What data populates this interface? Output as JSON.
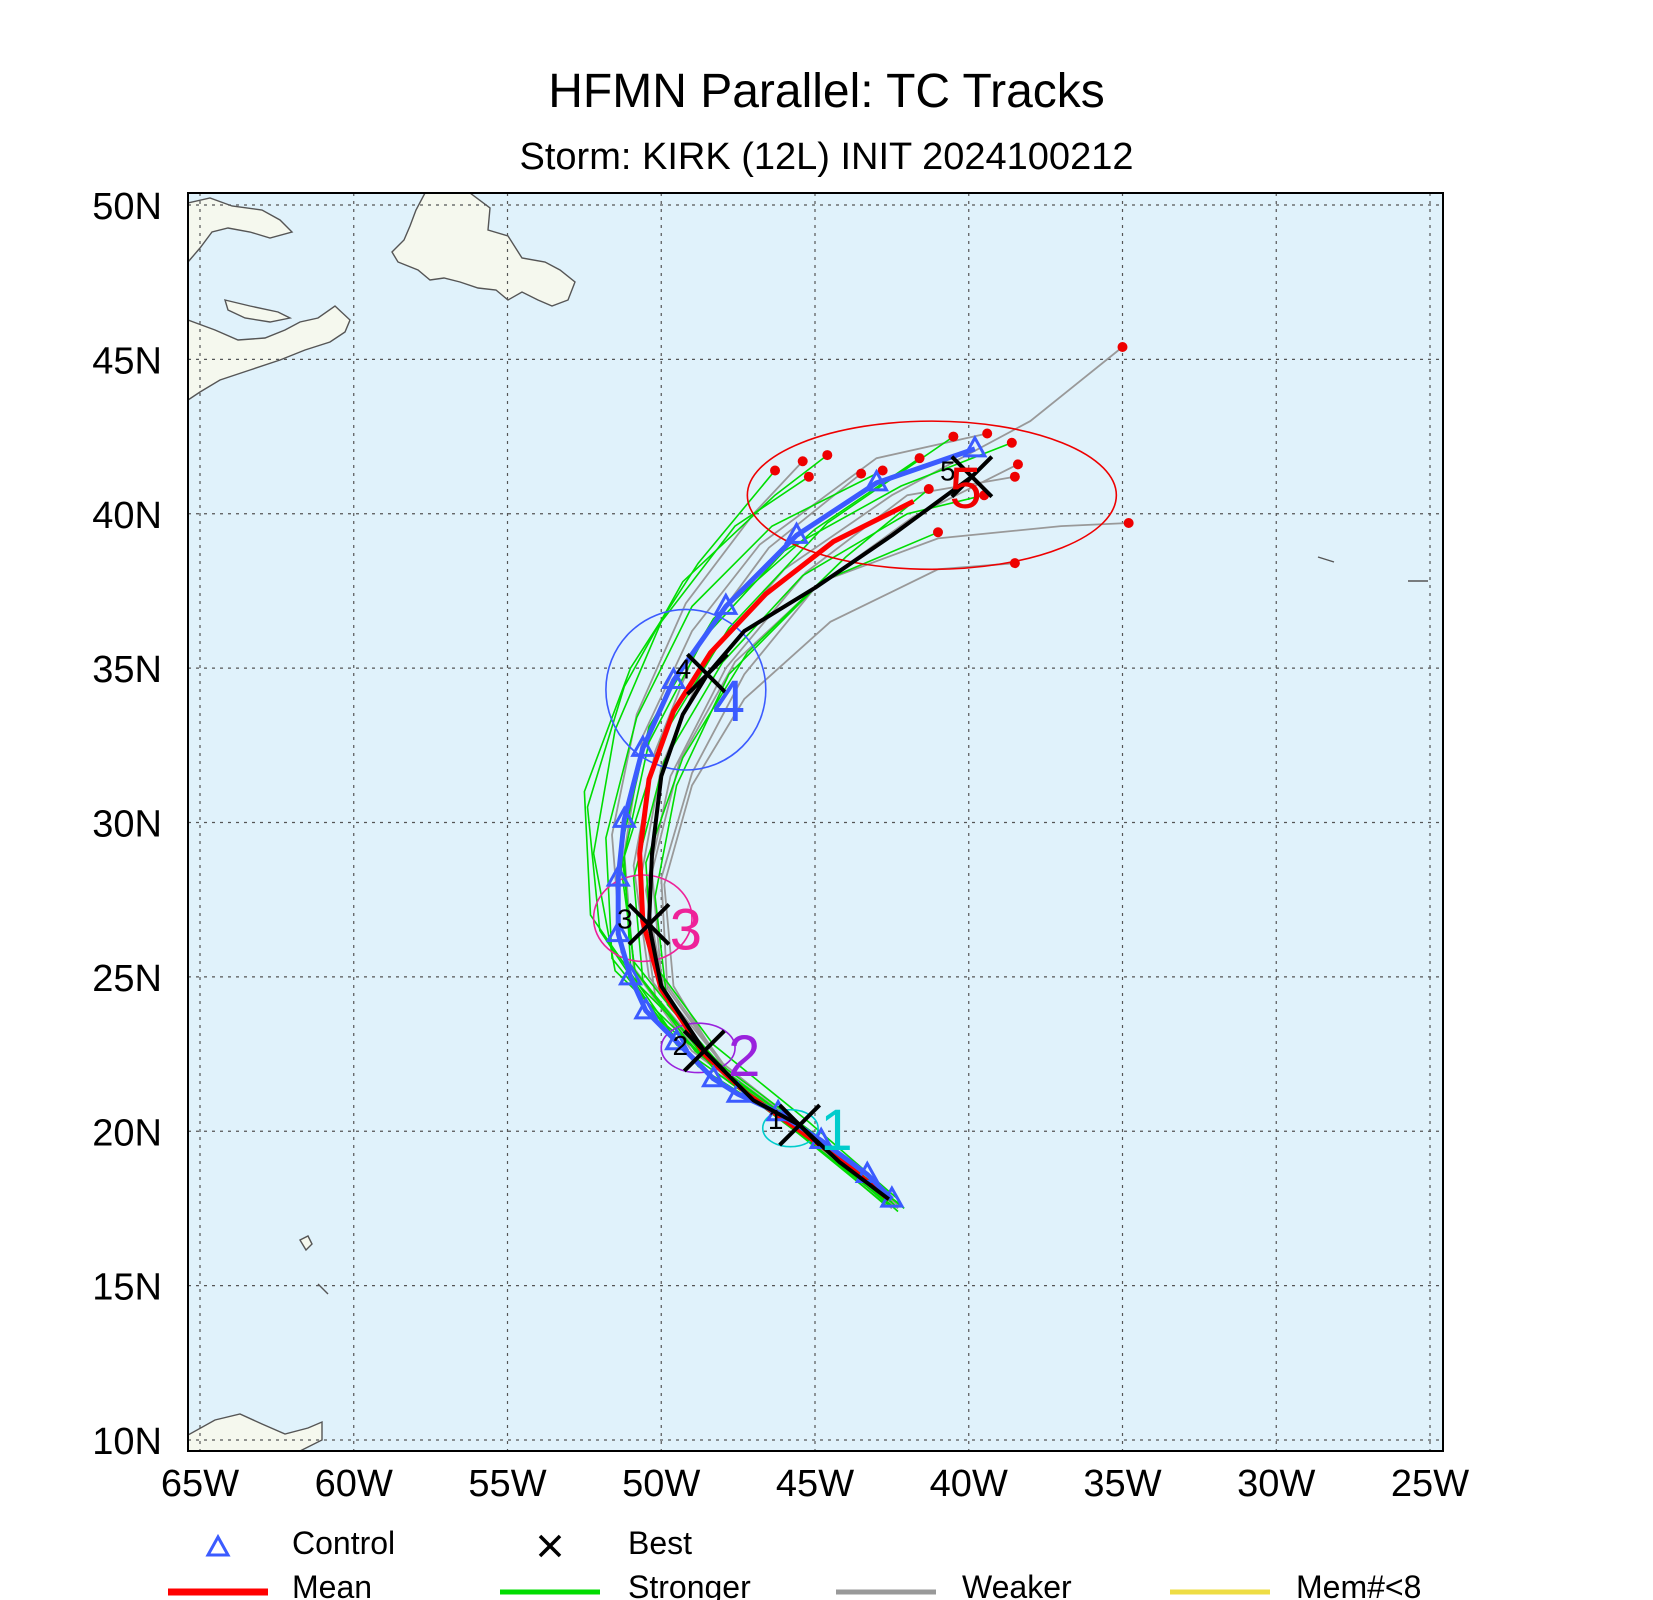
{
  "title": "HFMN Parallel: TC Tracks",
  "subtitle": "Storm: KIRK (12L) INIT 2024100212",
  "chart_data": {
    "type": "line",
    "xlim": [
      -65,
      -25
    ],
    "ylim": [
      10,
      50
    ],
    "x_ticks": [
      {
        "value": -65,
        "label": "65W"
      },
      {
        "value": -60,
        "label": "60W"
      },
      {
        "value": -55,
        "label": "55W"
      },
      {
        "value": -50,
        "label": "50W"
      },
      {
        "value": -45,
        "label": "45W"
      },
      {
        "value": -40,
        "label": "40W"
      },
      {
        "value": -35,
        "label": "35W"
      },
      {
        "value": -30,
        "label": "30W"
      },
      {
        "value": -25,
        "label": "25W"
      }
    ],
    "y_ticks": [
      {
        "value": 10,
        "label": "10N"
      },
      {
        "value": 15,
        "label": "15N"
      },
      {
        "value": 20,
        "label": "20N"
      },
      {
        "value": 25,
        "label": "25N"
      },
      {
        "value": 30,
        "label": "30N"
      },
      {
        "value": 35,
        "label": "35N"
      },
      {
        "value": 40,
        "label": "40N"
      },
      {
        "value": 45,
        "label": "45N"
      },
      {
        "value": 50,
        "label": "50N"
      }
    ],
    "grid": true,
    "legend": [
      {
        "label": "Control",
        "symbol": "triangle",
        "color": "#3b5bff"
      },
      {
        "label": "Best",
        "symbol": "x",
        "color": "#000000"
      },
      {
        "label": "Mean",
        "symbol": "line",
        "color": "#ff0000"
      },
      {
        "label": "Stronger",
        "symbol": "line",
        "color": "#00dd00"
      },
      {
        "label": "Weaker",
        "symbol": "line",
        "color": "#999999"
      },
      {
        "label": "Mem#<8",
        "symbol": "line",
        "color": "#eedd44"
      }
    ],
    "best_track": {
      "color": "#000000",
      "points": [
        [
          -42.6,
          17.8
        ],
        [
          -44.2,
          19.0
        ],
        [
          -45.5,
          20.2
        ],
        [
          -47.0,
          21.0
        ],
        [
          -48.6,
          22.6
        ],
        [
          -50.0,
          24.7
        ],
        [
          -50.4,
          26.7
        ],
        [
          -50.3,
          29.0
        ],
        [
          -50.0,
          31.5
        ],
        [
          -49.3,
          33.5
        ],
        [
          -48.5,
          34.8
        ],
        [
          -47.3,
          36.2
        ],
        [
          -45.0,
          37.6
        ],
        [
          -42.5,
          39.3
        ],
        [
          -39.9,
          41.2
        ]
      ],
      "markers": [
        {
          "label": "1",
          "x": -45.5,
          "y": 20.2
        },
        {
          "label": "2",
          "x": -48.6,
          "y": 22.6
        },
        {
          "label": "3",
          "x": -50.4,
          "y": 26.7
        },
        {
          "label": "4",
          "x": -48.5,
          "y": 34.8
        },
        {
          "label": "5",
          "x": -39.9,
          "y": 41.2
        }
      ]
    },
    "control_track": {
      "color": "#3b5bff",
      "points": [
        [
          -42.5,
          17.8
        ],
        [
          -43.3,
          18.6
        ],
        [
          -44.8,
          19.7
        ],
        [
          -46.2,
          20.6
        ],
        [
          -47.5,
          21.2
        ],
        [
          -48.3,
          21.7
        ],
        [
          -49.5,
          22.9
        ],
        [
          -50.5,
          23.9
        ],
        [
          -51.0,
          25.0
        ],
        [
          -51.4,
          26.4
        ],
        [
          -51.4,
          28.2
        ],
        [
          -51.2,
          30.1
        ],
        [
          -50.6,
          32.4
        ],
        [
          -49.6,
          34.6
        ],
        [
          -47.9,
          37.0
        ],
        [
          -45.6,
          39.3
        ],
        [
          -43.0,
          41.0
        ],
        [
          -39.8,
          42.1
        ]
      ]
    },
    "mean_track": {
      "color": "#ff0000",
      "points": [
        [
          -42.6,
          17.8
        ],
        [
          -44.2,
          19.1
        ],
        [
          -45.6,
          20.1
        ],
        [
          -47.2,
          21.2
        ],
        [
          -48.6,
          22.5
        ],
        [
          -50.0,
          24.6
        ],
        [
          -50.6,
          26.8
        ],
        [
          -50.7,
          29.0
        ],
        [
          -50.4,
          31.4
        ],
        [
          -49.6,
          33.6
        ],
        [
          -48.4,
          35.5
        ],
        [
          -46.6,
          37.4
        ],
        [
          -44.4,
          39.1
        ],
        [
          -41.8,
          40.4
        ]
      ]
    },
    "stronger_members": {
      "color": "#00dd00",
      "tracks": [
        [
          [
            -42.3,
            17.4
          ],
          [
            -45.0,
            19.8
          ],
          [
            -48.5,
            22.3
          ],
          [
            -51.5,
            25.2
          ],
          [
            -52.2,
            29.0
          ],
          [
            -51.5,
            33.0
          ],
          [
            -50.0,
            36.5
          ],
          [
            -47.6,
            39.6
          ],
          [
            -45.2,
            41.2
          ]
        ],
        [
          [
            -42.6,
            17.6
          ],
          [
            -45.3,
            19.9
          ],
          [
            -48.8,
            22.1
          ],
          [
            -51.6,
            25.6
          ],
          [
            -51.8,
            29.5
          ],
          [
            -50.8,
            33.4
          ],
          [
            -49.0,
            37.0
          ],
          [
            -46.4,
            39.6
          ],
          [
            -42.8,
            41.4
          ]
        ],
        [
          [
            -42.2,
            17.6
          ],
          [
            -44.9,
            19.7
          ],
          [
            -48.0,
            22.0
          ],
          [
            -50.8,
            24.8
          ],
          [
            -51.3,
            28.5
          ],
          [
            -50.4,
            32.6
          ],
          [
            -48.6,
            36.0
          ],
          [
            -46.0,
            38.8
          ],
          [
            -42.2,
            40.9
          ],
          [
            -38.6,
            42.3
          ]
        ],
        [
          [
            -42.4,
            17.5
          ],
          [
            -45.1,
            19.6
          ],
          [
            -48.2,
            21.9
          ],
          [
            -50.6,
            24.9
          ],
          [
            -50.9,
            28.2
          ],
          [
            -49.9,
            32.0
          ],
          [
            -48.0,
            35.2
          ],
          [
            -45.4,
            38.0
          ],
          [
            -42.0,
            40.0
          ],
          [
            -39.5,
            40.6
          ]
        ],
        [
          [
            -42.7,
            17.6
          ],
          [
            -45.8,
            20.2
          ],
          [
            -49.5,
            22.8
          ],
          [
            -52.0,
            26.5
          ],
          [
            -52.4,
            30.5
          ],
          [
            -51.2,
            34.4
          ],
          [
            -49.3,
            37.8
          ],
          [
            -46.3,
            40.6
          ],
          [
            -44.6,
            41.9
          ]
        ],
        [
          [
            -42.1,
            17.5
          ],
          [
            -44.5,
            19.4
          ],
          [
            -47.5,
            21.5
          ],
          [
            -49.8,
            24.1
          ],
          [
            -50.2,
            27.6
          ],
          [
            -49.5,
            31.2
          ],
          [
            -47.8,
            34.8
          ],
          [
            -44.8,
            37.8
          ],
          [
            -41.0,
            39.4
          ]
        ],
        [
          [
            -42.5,
            17.7
          ],
          [
            -45.5,
            20.0
          ],
          [
            -48.9,
            22.6
          ],
          [
            -51.0,
            25.4
          ],
          [
            -51.2,
            28.9
          ],
          [
            -50.0,
            32.7
          ],
          [
            -47.8,
            36.3
          ],
          [
            -44.6,
            39.7
          ],
          [
            -40.5,
            42.5
          ]
        ],
        [
          [
            -42.3,
            17.8
          ],
          [
            -45.2,
            20.3
          ],
          [
            -48.3,
            22.8
          ],
          [
            -50.3,
            25.5
          ],
          [
            -50.5,
            28.7
          ],
          [
            -49.3,
            32.1
          ],
          [
            -47.2,
            35.5
          ],
          [
            -44.0,
            38.6
          ],
          [
            -41.3,
            40.8
          ]
        ],
        [
          [
            -42.8,
            17.7
          ],
          [
            -46.0,
            20.3
          ],
          [
            -49.8,
            23.4
          ],
          [
            -52.3,
            27.0
          ],
          [
            -52.5,
            31.0
          ],
          [
            -51.0,
            35.0
          ],
          [
            -48.8,
            38.4
          ],
          [
            -46.3,
            41.4
          ]
        ],
        [
          [
            -42.4,
            17.6
          ],
          [
            -45.0,
            19.9
          ],
          [
            -48.4,
            22.4
          ],
          [
            -50.9,
            25.5
          ],
          [
            -51.3,
            29.2
          ],
          [
            -50.4,
            33.1
          ],
          [
            -48.3,
            36.6
          ],
          [
            -45.0,
            39.5
          ],
          [
            -41.6,
            41.8
          ]
        ]
      ]
    },
    "weaker_members": {
      "color": "#999999",
      "tracks": [
        [
          [
            -42.5,
            17.5
          ],
          [
            -44.8,
            19.5
          ],
          [
            -47.8,
            21.6
          ],
          [
            -50.2,
            24.4
          ],
          [
            -50.7,
            28.0
          ],
          [
            -50.0,
            31.8
          ],
          [
            -48.5,
            35.3
          ],
          [
            -46.0,
            38.2
          ],
          [
            -42.5,
            40.6
          ],
          [
            -38.0,
            43.0
          ],
          [
            -35.0,
            45.4
          ]
        ],
        [
          [
            -42.6,
            17.6
          ],
          [
            -45.0,
            19.8
          ],
          [
            -48.0,
            22.2
          ],
          [
            -50.0,
            25.0
          ],
          [
            -50.3,
            28.4
          ],
          [
            -49.4,
            32.0
          ],
          [
            -47.6,
            35.2
          ],
          [
            -44.8,
            37.8
          ],
          [
            -41.0,
            39.2
          ],
          [
            -37.0,
            39.6
          ],
          [
            -34.8,
            39.7
          ]
        ],
        [
          [
            -42.3,
            17.5
          ],
          [
            -44.6,
            19.4
          ],
          [
            -47.6,
            21.6
          ],
          [
            -49.8,
            24.6
          ],
          [
            -50.0,
            28.2
          ],
          [
            -49.0,
            31.6
          ],
          [
            -47.3,
            34.8
          ],
          [
            -45.0,
            37.6
          ],
          [
            -41.8,
            39.9
          ],
          [
            -38.4,
            41.6
          ]
        ],
        [
          [
            -42.6,
            17.7
          ],
          [
            -45.4,
            20.0
          ],
          [
            -48.7,
            22.4
          ],
          [
            -50.9,
            25.3
          ],
          [
            -51.2,
            29.0
          ],
          [
            -50.6,
            32.8
          ],
          [
            -49.0,
            36.2
          ],
          [
            -46.8,
            39.0
          ],
          [
            -43.0,
            41.8
          ],
          [
            -39.4,
            42.6
          ]
        ],
        [
          [
            -42.5,
            17.6
          ],
          [
            -45.2,
            19.9
          ],
          [
            -48.3,
            22.2
          ],
          [
            -50.4,
            25.0
          ],
          [
            -50.9,
            28.6
          ],
          [
            -50.2,
            32.3
          ],
          [
            -48.8,
            35.8
          ],
          [
            -46.5,
            38.9
          ],
          [
            -43.5,
            41.3
          ]
        ],
        [
          [
            -42.4,
            17.7
          ],
          [
            -44.9,
            19.7
          ],
          [
            -47.9,
            21.9
          ],
          [
            -49.6,
            24.7
          ],
          [
            -49.9,
            28.0
          ],
          [
            -49.0,
            31.2
          ],
          [
            -47.3,
            34.0
          ],
          [
            -44.5,
            36.5
          ],
          [
            -41.0,
            38.2
          ],
          [
            -38.5,
            38.4
          ]
        ],
        [
          [
            -42.7,
            17.6
          ],
          [
            -45.6,
            20.1
          ],
          [
            -49.0,
            22.6
          ],
          [
            -51.3,
            25.8
          ],
          [
            -51.6,
            29.6
          ],
          [
            -50.8,
            33.5
          ],
          [
            -49.2,
            37.1
          ],
          [
            -47.0,
            40.0
          ],
          [
            -45.4,
            41.7
          ]
        ],
        [
          [
            -42.3,
            17.6
          ],
          [
            -44.7,
            19.6
          ],
          [
            -47.7,
            21.8
          ],
          [
            -49.9,
            24.5
          ],
          [
            -50.5,
            27.8
          ],
          [
            -49.7,
            31.5
          ],
          [
            -47.9,
            35.0
          ],
          [
            -45.3,
            38.1
          ],
          [
            -42.0,
            40.6
          ],
          [
            -38.5,
            41.2
          ]
        ]
      ]
    },
    "mean_position_ellipses": [
      {
        "day": "1",
        "color": "#00cccc",
        "cx": -45.8,
        "cy": 20.1,
        "rx": 0.9,
        "ry": 0.6
      },
      {
        "day": "2",
        "color": "#9922dd",
        "cx": -48.8,
        "cy": 22.7,
        "rx": 1.2,
        "ry": 0.8
      },
      {
        "day": "3",
        "color": "#ee2299",
        "cx": -50.6,
        "cy": 26.9,
        "rx": 1.6,
        "ry": 1.4
      },
      {
        "day": "4",
        "color": "#3b5bff",
        "cx": -49.2,
        "cy": 34.3,
        "rx": 2.6,
        "ry": 2.6
      },
      {
        "day": "5",
        "color": "#ee0000",
        "cx": -41.2,
        "cy": 40.6,
        "rx": 6.0,
        "ry": 2.4
      }
    ],
    "mean_position_labels": [
      {
        "label": "1",
        "color": "#00cccc",
        "x": -44.3,
        "y": 20.1
      },
      {
        "label": "2",
        "color": "#9922dd",
        "x": -47.3,
        "y": 22.5
      },
      {
        "label": "3",
        "color": "#ee2299",
        "x": -49.2,
        "y": 26.6
      },
      {
        "label": "4",
        "color": "#3b5bff",
        "x": -47.8,
        "y": 34.0
      },
      {
        "label": "5",
        "color": "#ee0000",
        "x": -40.1,
        "y": 40.9
      }
    ]
  }
}
